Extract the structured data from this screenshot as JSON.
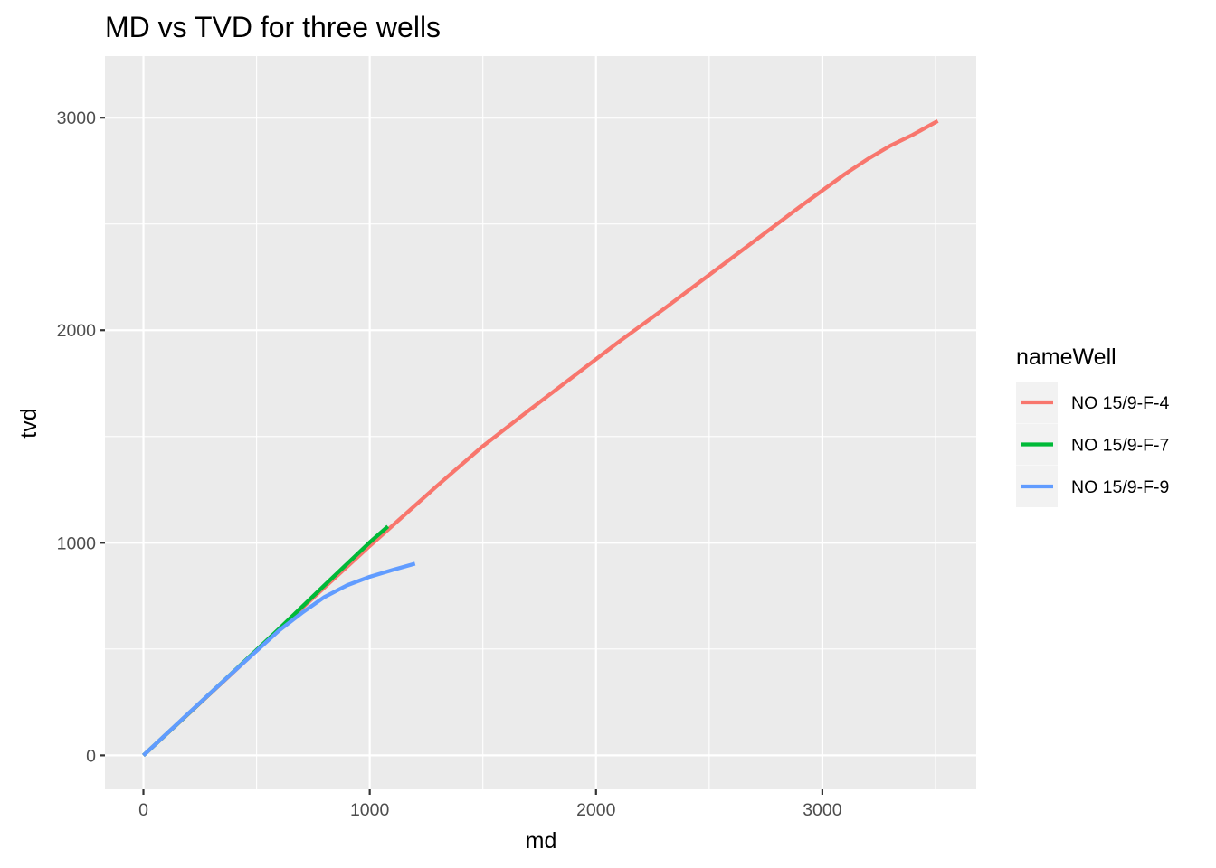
{
  "chart_data": {
    "type": "line",
    "title": "MD vs TVD for three wells",
    "xlabel": "md",
    "ylabel": "tvd",
    "xlim": [
      -170,
      3680
    ],
    "ylim": [
      -160,
      3290
    ],
    "x_ticks": [
      0,
      1000,
      2000,
      3000
    ],
    "x_tick_labels": [
      "0",
      "1000",
      "2000",
      "3000"
    ],
    "y_ticks": [
      0,
      1000,
      2000,
      3000
    ],
    "y_tick_labels": [
      "0",
      "1000",
      "2000",
      "3000"
    ],
    "grid": true,
    "legend": {
      "title": "nameWell",
      "position": "right"
    },
    "series": [
      {
        "name": "NO 15/9-F-4",
        "color": "#F8766D",
        "points": [
          [
            0,
            0
          ],
          [
            200,
            196
          ],
          [
            400,
            394
          ],
          [
            600,
            594
          ],
          [
            800,
            790
          ],
          [
            1000,
            985
          ],
          [
            1100,
            1080
          ],
          [
            1300,
            1270
          ],
          [
            1500,
            1455
          ],
          [
            1700,
            1620
          ],
          [
            1900,
            1783
          ],
          [
            2100,
            1945
          ],
          [
            2300,
            2100
          ],
          [
            2500,
            2260
          ],
          [
            2700,
            2420
          ],
          [
            2900,
            2580
          ],
          [
            3100,
            2735
          ],
          [
            3200,
            2805
          ],
          [
            3300,
            2868
          ],
          [
            3400,
            2920
          ],
          [
            3510,
            2985
          ]
        ]
      },
      {
        "name": "NO 15/9-F-7",
        "color": "#00BA38",
        "points": [
          [
            0,
            0
          ],
          [
            200,
            197
          ],
          [
            400,
            396
          ],
          [
            600,
            596
          ],
          [
            800,
            800
          ],
          [
            1000,
            1002
          ],
          [
            1080,
            1077
          ]
        ]
      },
      {
        "name": "NO 15/9-F-9",
        "color": "#619CFF",
        "points": [
          [
            0,
            0
          ],
          [
            200,
            198
          ],
          [
            400,
            395
          ],
          [
            600,
            588
          ],
          [
            700,
            670
          ],
          [
            800,
            745
          ],
          [
            900,
            800
          ],
          [
            1000,
            840
          ],
          [
            1100,
            872
          ],
          [
            1200,
            902
          ]
        ]
      }
    ]
  }
}
